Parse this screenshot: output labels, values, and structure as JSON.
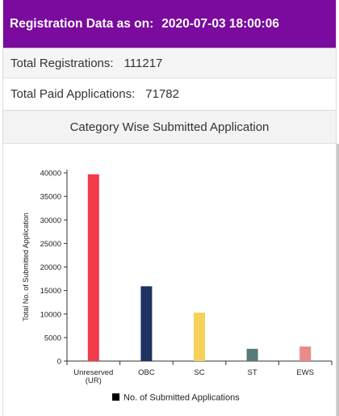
{
  "header": {
    "title": "Registration Data as on:",
    "date": "2020-07-03 18:00:06"
  },
  "stats": [
    {
      "label": "Total Registrations:",
      "value": "111217"
    },
    {
      "label": "Total Paid Applications:",
      "value": "71782"
    }
  ],
  "panel": {
    "title": "Category Wise Submitted Application"
  },
  "chart_data": {
    "type": "bar",
    "categories": [
      "Unreserved (UR)",
      "OBC",
      "SC",
      "ST",
      "EWS"
    ],
    "category_lines": [
      [
        "Unreserved",
        "(UR)"
      ],
      [
        "OBC"
      ],
      [
        "SC"
      ],
      [
        "ST"
      ],
      [
        "EWS"
      ]
    ],
    "values": [
      39700,
      15900,
      10300,
      2600,
      3100
    ],
    "colors": [
      "#f23a4a",
      "#1f3360",
      "#f5d35a",
      "#567a7a",
      "#e98c8c"
    ],
    "ylabel": "Total No. of Submitted Application",
    "xlabel": "",
    "ylim": [
      0,
      40000
    ],
    "yticks": [
      0,
      5000,
      10000,
      15000,
      20000,
      25000,
      30000,
      35000,
      40000
    ],
    "legend": {
      "label": "No. of Submitted Applications",
      "color": "#000000",
      "position": "bottom"
    },
    "grid": false
  }
}
